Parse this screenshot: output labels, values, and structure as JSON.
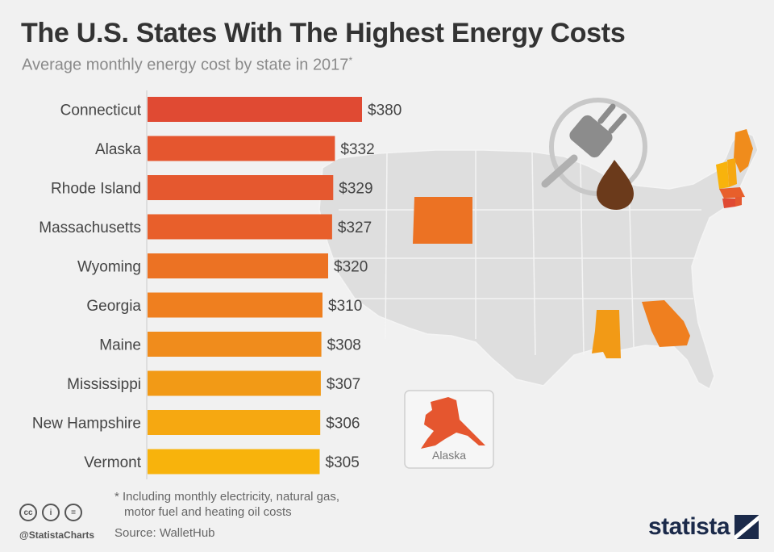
{
  "header": {
    "title": "The U.S. States With The Highest Energy Costs",
    "subtitle": "Average monthly energy cost by state in 2017",
    "subtitle_mark": "*"
  },
  "chart_data": {
    "type": "bar",
    "orientation": "horizontal",
    "categories": [
      "Connecticut",
      "Alaska",
      "Rhode Island",
      "Massachusetts",
      "Wyoming",
      "Georgia",
      "Maine",
      "Mississippi",
      "New Hampshire",
      "Vermont"
    ],
    "values": [
      380,
      332,
      329,
      327,
      320,
      310,
      308,
      307,
      306,
      305
    ],
    "value_labels": [
      "$380",
      "$332",
      "$329",
      "$327",
      "$320",
      "$310",
      "$308",
      "$307",
      "$306",
      "$305"
    ],
    "colors": [
      "#e04a33",
      "#e5562f",
      "#e5582f",
      "#e85f2b",
      "#ec7223",
      "#ef7f1f",
      "#f08c1c",
      "#f29a16",
      "#f6a811",
      "#f8b30c"
    ],
    "unit": "USD",
    "xlim": [
      0,
      380
    ]
  },
  "map": {
    "inset_label": "Alaska",
    "highlighted_states": [
      "Wyoming",
      "Mississippi",
      "Georgia",
      "Maine",
      "New Hampshire",
      "Vermont",
      "Massachusetts",
      "Connecticut",
      "Rhode Island",
      "Alaska"
    ],
    "icons": [
      "plug-icon",
      "oil-drop-icon"
    ]
  },
  "footer": {
    "footnote_line1": "* Including monthly electricity, natural gas,",
    "footnote_line2": "motor fuel and heating oil costs",
    "handle": "@StatistaCharts",
    "source": "Source: WalletHub",
    "brand": "statista",
    "license_icons": [
      "cc",
      "by",
      "nd"
    ]
  }
}
